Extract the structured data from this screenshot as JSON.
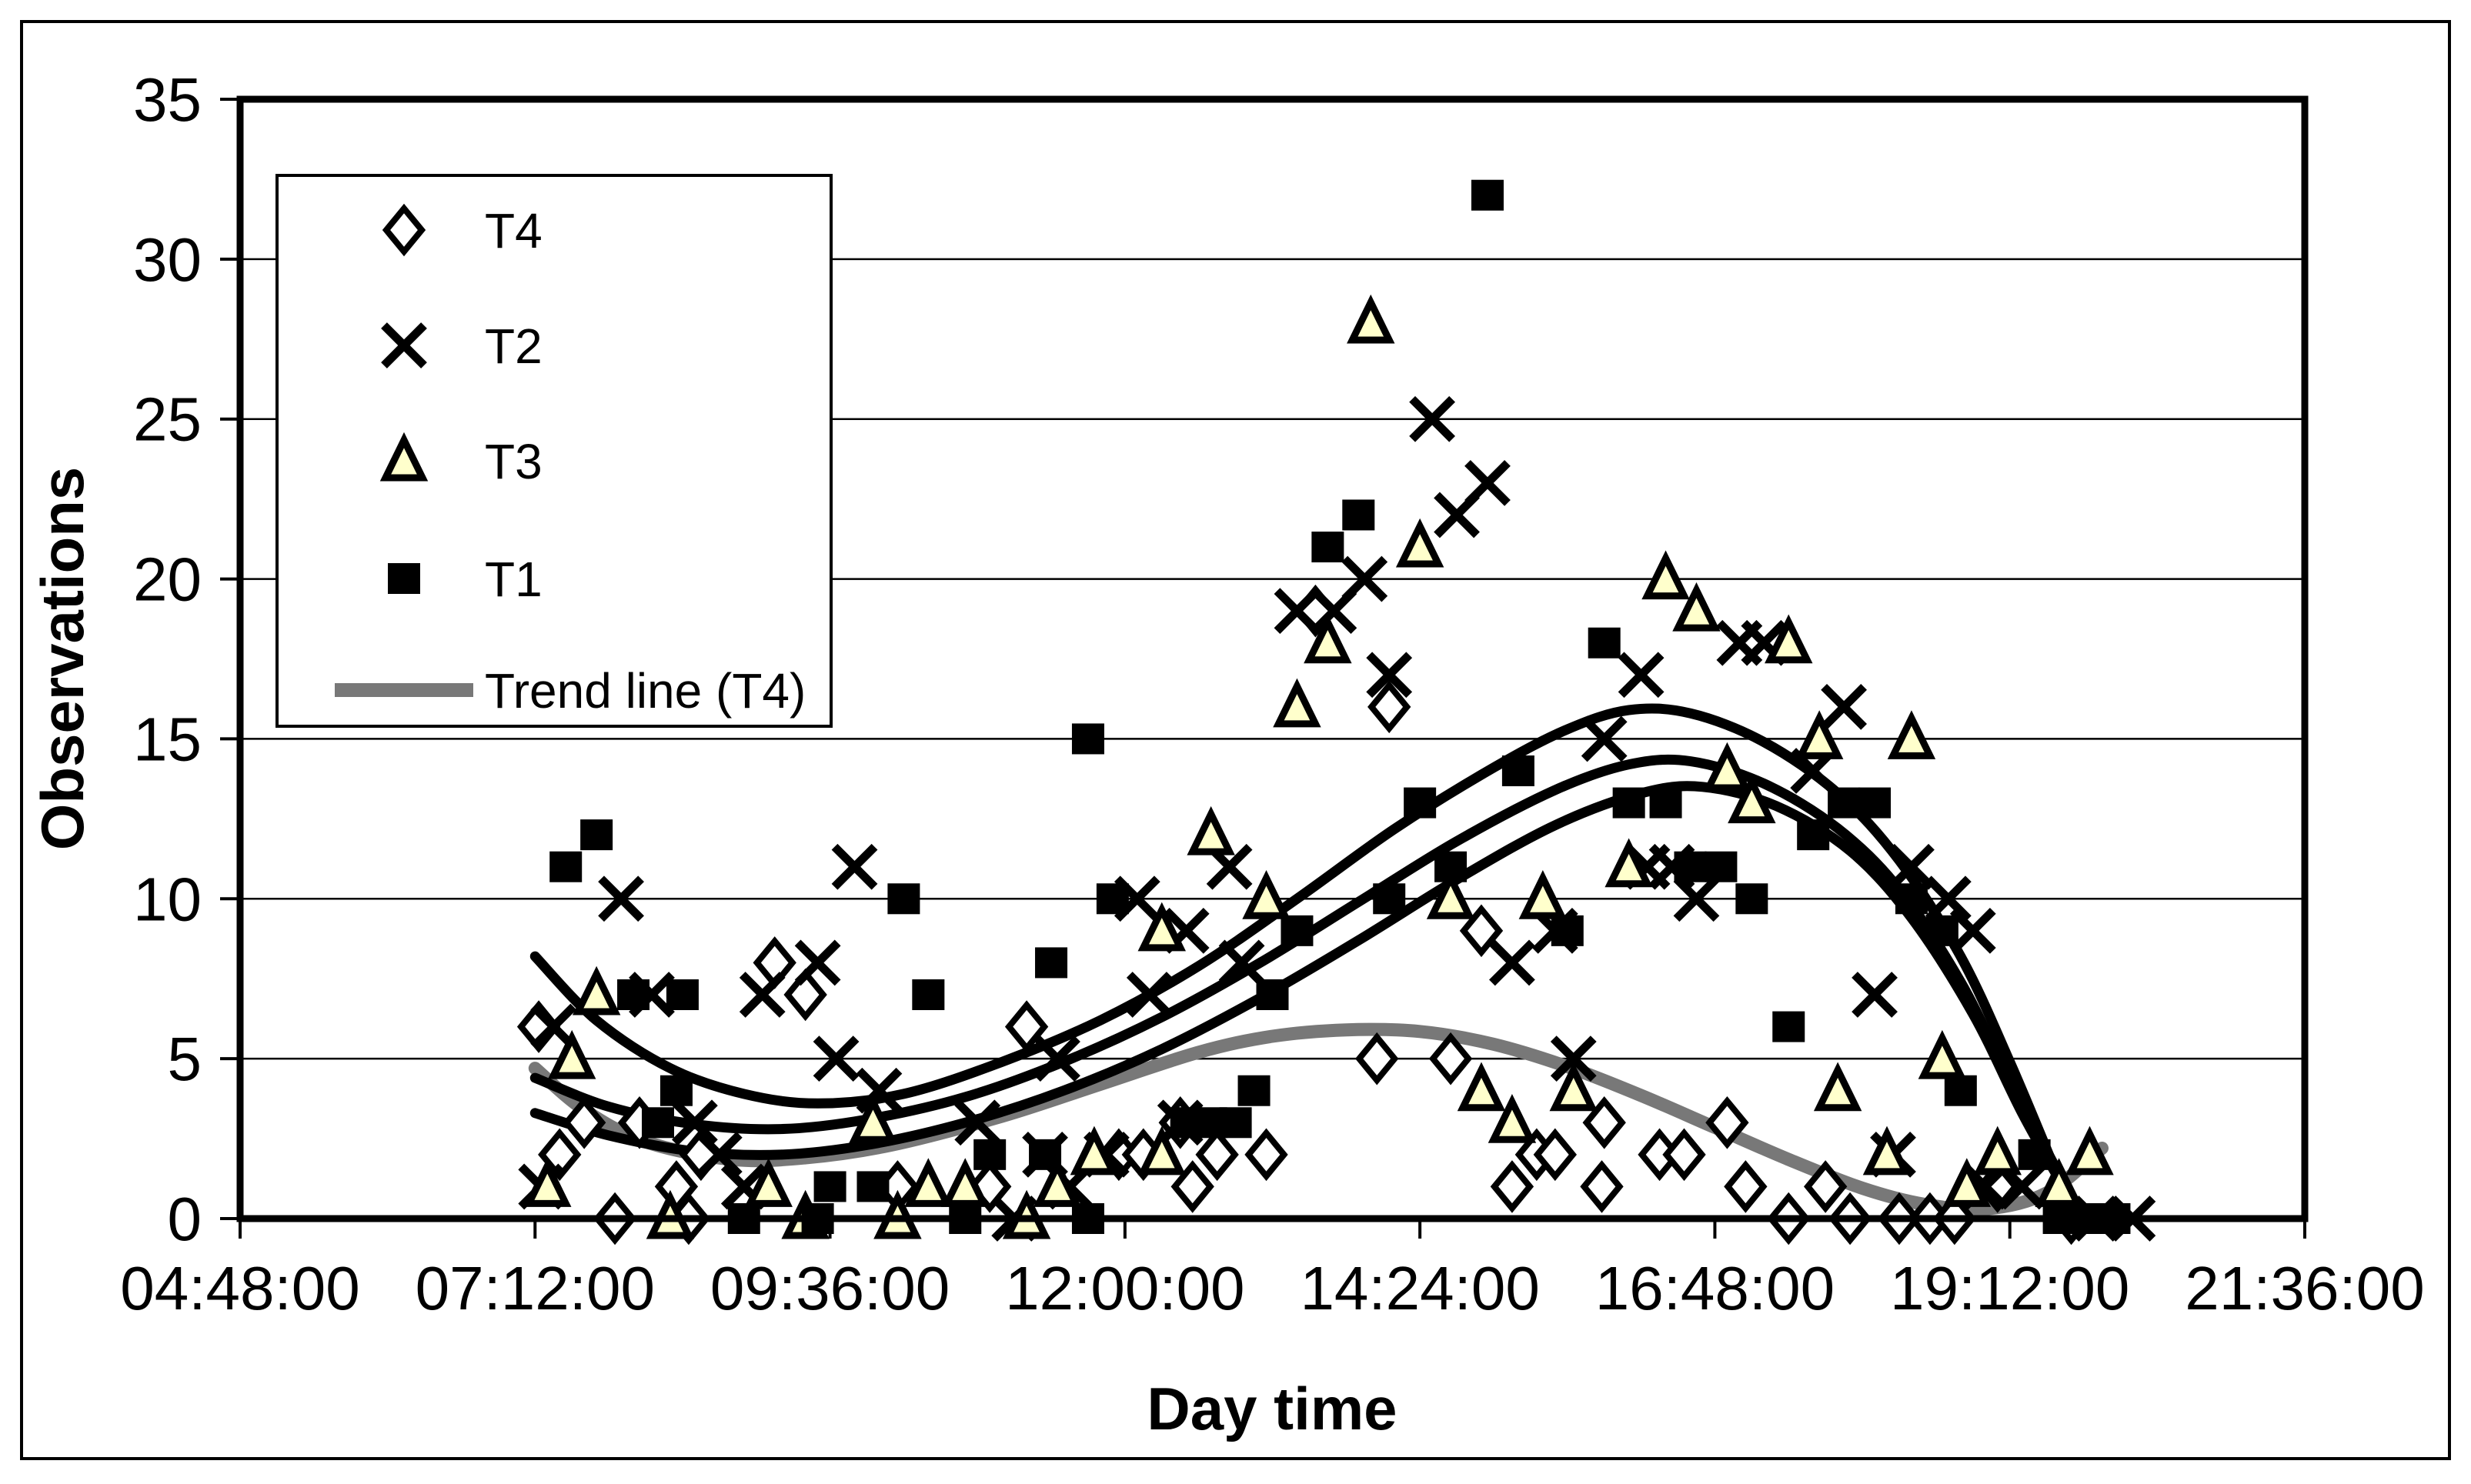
{
  "chart_data": {
    "type": "scatter",
    "title": "",
    "xlabel": "Day time",
    "ylabel": "Observations",
    "x_axis": {
      "tick_labels": [
        "04:48:00",
        "07:12:00",
        "09:36:00",
        "12:00:00",
        "14:24:00",
        "16:48:00",
        "19:12:00",
        "21:36:00"
      ],
      "tick_hours": [
        4.8,
        7.2,
        9.6,
        12.0,
        14.4,
        16.8,
        19.2,
        21.6
      ],
      "min_hours": 4.8,
      "max_hours": 21.6
    },
    "y_axis": {
      "tick_labels": [
        "0",
        "5",
        "10",
        "15",
        "20",
        "25",
        "30",
        "35"
      ],
      "tick_values": [
        0,
        5,
        10,
        15,
        20,
        25,
        30,
        35
      ],
      "min": 0,
      "max": 35,
      "gridlines": true
    },
    "legend": {
      "position": "top-left-inside",
      "entries": [
        {
          "label": "T4",
          "marker": "diamond"
        },
        {
          "label": "T2",
          "marker": "x"
        },
        {
          "label": "T3",
          "marker": "triangle"
        },
        {
          "label": "T1",
          "marker": "square"
        },
        {
          "label": "Trend line (T4)",
          "marker": "line"
        }
      ]
    },
    "colors": {
      "marker_stroke": "#000000",
      "triangle_fill": "#FFFFCC",
      "trend_gray": "#787878",
      "trend_black": "#000000",
      "background": "#FFFFFF"
    },
    "series": [
      {
        "name": "T4",
        "marker": "diamond",
        "points_hours_value": [
          [
            7.23,
            6
          ],
          [
            7.4,
            2
          ],
          [
            7.6,
            3
          ],
          [
            7.85,
            0
          ],
          [
            8.05,
            3
          ],
          [
            8.35,
            1
          ],
          [
            8.45,
            0
          ],
          [
            8.55,
            2
          ],
          [
            9.15,
            8
          ],
          [
            9.4,
            7
          ],
          [
            10.15,
            1
          ],
          [
            10.9,
            1
          ],
          [
            11.2,
            6
          ],
          [
            11.95,
            2
          ],
          [
            12.15,
            2
          ],
          [
            12.45,
            3
          ],
          [
            12.55,
            1
          ],
          [
            12.75,
            2
          ],
          [
            13.15,
            2
          ],
          [
            13.55,
            19
          ],
          [
            14.05,
            5
          ],
          [
            14.15,
            16
          ],
          [
            14.65,
            5
          ],
          [
            14.9,
            9
          ],
          [
            15.15,
            1
          ],
          [
            15.35,
            2
          ],
          [
            15.5,
            2
          ],
          [
            15.88,
            1
          ],
          [
            15.9,
            3
          ],
          [
            16.35,
            2
          ],
          [
            16.55,
            2
          ],
          [
            16.9,
            3
          ],
          [
            17.05,
            1
          ],
          [
            17.4,
            0
          ],
          [
            17.7,
            1
          ],
          [
            17.9,
            0
          ],
          [
            18.3,
            0
          ],
          [
            18.55,
            0
          ],
          [
            18.75,
            0
          ],
          [
            19.1,
            1
          ],
          [
            19.7,
            0
          ]
        ]
      },
      {
        "name": "T2",
        "marker": "x",
        "points_hours_value": [
          [
            7.25,
            1
          ],
          [
            7.35,
            6
          ],
          [
            7.9,
            10
          ],
          [
            8.15,
            7
          ],
          [
            8.5,
            3
          ],
          [
            8.7,
            2
          ],
          [
            8.9,
            1
          ],
          [
            9.05,
            7
          ],
          [
            9.5,
            8
          ],
          [
            9.65,
            5
          ],
          [
            9.8,
            11
          ],
          [
            10.0,
            4
          ],
          [
            10.8,
            3
          ],
          [
            11.1,
            0
          ],
          [
            11.35,
            2
          ],
          [
            11.45,
            5
          ],
          [
            11.55,
            1
          ],
          [
            11.85,
            2
          ],
          [
            12.1,
            10
          ],
          [
            12.2,
            7
          ],
          [
            12.45,
            3
          ],
          [
            12.5,
            9
          ],
          [
            12.85,
            11
          ],
          [
            12.95,
            8
          ],
          [
            13.4,
            19
          ],
          [
            13.7,
            19
          ],
          [
            13.95,
            20
          ],
          [
            14.15,
            17
          ],
          [
            14.5,
            25
          ],
          [
            14.7,
            22
          ],
          [
            14.95,
            23
          ],
          [
            15.15,
            8
          ],
          [
            15.5,
            9
          ],
          [
            15.65,
            5
          ],
          [
            15.9,
            15
          ],
          [
            16.2,
            17
          ],
          [
            16.25,
            11
          ],
          [
            16.45,
            11
          ],
          [
            16.65,
            10
          ],
          [
            17.0,
            18
          ],
          [
            17.2,
            18
          ],
          [
            17.6,
            14
          ],
          [
            17.85,
            16
          ],
          [
            18.1,
            7
          ],
          [
            18.25,
            2
          ],
          [
            18.4,
            11
          ],
          [
            18.7,
            10
          ],
          [
            18.9,
            9
          ],
          [
            19.0,
            1
          ],
          [
            19.3,
            1
          ],
          [
            19.9,
            0
          ],
          [
            20.2,
            0
          ]
        ]
      },
      {
        "name": "T3",
        "marker": "triangle",
        "points_hours_value": [
          [
            7.3,
            1
          ],
          [
            7.5,
            5
          ],
          [
            7.7,
            7
          ],
          [
            8.3,
            0
          ],
          [
            9.1,
            1
          ],
          [
            9.4,
            0
          ],
          [
            9.95,
            3
          ],
          [
            10.15,
            0
          ],
          [
            10.4,
            1
          ],
          [
            10.7,
            1
          ],
          [
            11.2,
            0
          ],
          [
            11.45,
            1
          ],
          [
            11.75,
            2
          ],
          [
            12.3,
            2
          ],
          [
            12.3,
            9
          ],
          [
            12.7,
            12
          ],
          [
            13.15,
            10
          ],
          [
            13.4,
            16
          ],
          [
            13.65,
            18
          ],
          [
            14.0,
            28
          ],
          [
            14.4,
            21
          ],
          [
            14.65,
            10
          ],
          [
            14.9,
            4
          ],
          [
            15.15,
            3
          ],
          [
            15.4,
            10
          ],
          [
            15.65,
            4
          ],
          [
            16.1,
            11
          ],
          [
            16.4,
            20
          ],
          [
            16.65,
            19
          ],
          [
            16.9,
            14
          ],
          [
            17.1,
            13
          ],
          [
            17.4,
            18
          ],
          [
            17.65,
            15
          ],
          [
            17.8,
            4
          ],
          [
            18.2,
            2
          ],
          [
            18.4,
            15
          ],
          [
            18.65,
            5
          ],
          [
            18.85,
            1
          ],
          [
            19.1,
            2
          ],
          [
            19.6,
            1
          ],
          [
            19.85,
            2
          ]
        ]
      },
      {
        "name": "T1",
        "marker": "square",
        "points_hours_value": [
          [
            7.45,
            11
          ],
          [
            7.7,
            12
          ],
          [
            8.0,
            7
          ],
          [
            8.2,
            3
          ],
          [
            8.35,
            4
          ],
          [
            8.4,
            7
          ],
          [
            8.9,
            0
          ],
          [
            9.5,
            0
          ],
          [
            9.6,
            1
          ],
          [
            9.95,
            1
          ],
          [
            10.2,
            10
          ],
          [
            10.4,
            7
          ],
          [
            10.7,
            0
          ],
          [
            10.9,
            2
          ],
          [
            11.35,
            2
          ],
          [
            11.4,
            8
          ],
          [
            11.7,
            0
          ],
          [
            11.7,
            15
          ],
          [
            11.9,
            10
          ],
          [
            12.5,
            3
          ],
          [
            12.7,
            3
          ],
          [
            12.9,
            3
          ],
          [
            13.05,
            4
          ],
          [
            13.2,
            7
          ],
          [
            13.4,
            9
          ],
          [
            13.65,
            21
          ],
          [
            13.9,
            22
          ],
          [
            14.15,
            10
          ],
          [
            14.4,
            13
          ],
          [
            14.65,
            11
          ],
          [
            14.95,
            32
          ],
          [
            15.2,
            14
          ],
          [
            15.6,
            9
          ],
          [
            15.9,
            18
          ],
          [
            16.1,
            13
          ],
          [
            16.4,
            13
          ],
          [
            16.6,
            11
          ],
          [
            16.85,
            11
          ],
          [
            17.1,
            10
          ],
          [
            17.4,
            6
          ],
          [
            17.6,
            12
          ],
          [
            17.85,
            13
          ],
          [
            18.1,
            13
          ],
          [
            18.4,
            10
          ],
          [
            18.65,
            9
          ],
          [
            18.8,
            4
          ],
          [
            19.4,
            2
          ],
          [
            19.6,
            0
          ],
          [
            19.8,
            0
          ],
          [
            20.05,
            0
          ]
        ]
      }
    ],
    "trend_lines": [
      {
        "name": "Trend line (T4)",
        "style": "gray-thick",
        "points_hours_value": [
          [
            7.2,
            4.7
          ],
          [
            7.6,
            3.4
          ],
          [
            8.1,
            2.4
          ],
          [
            8.8,
            1.85
          ],
          [
            9.4,
            1.9
          ],
          [
            10.1,
            2.3
          ],
          [
            11.0,
            3.2
          ],
          [
            11.8,
            4.2
          ],
          [
            12.6,
            5.2
          ],
          [
            13.2,
            5.7
          ],
          [
            13.8,
            5.9
          ],
          [
            14.4,
            5.85
          ],
          [
            15.0,
            5.45
          ],
          [
            15.6,
            4.75
          ],
          [
            16.2,
            3.85
          ],
          [
            16.8,
            2.85
          ],
          [
            17.4,
            1.85
          ],
          [
            18.0,
            0.95
          ],
          [
            18.5,
            0.45
          ],
          [
            19.0,
            0.3
          ],
          [
            19.5,
            0.8
          ],
          [
            19.95,
            2.2
          ]
        ]
      },
      {
        "name": "unlabeled trend upper",
        "style": "black",
        "points_hours_value": [
          [
            7.2,
            8.2
          ],
          [
            7.7,
            6.2
          ],
          [
            8.3,
            4.7
          ],
          [
            8.9,
            3.9
          ],
          [
            9.5,
            3.6
          ],
          [
            10.2,
            3.9
          ],
          [
            11.0,
            4.9
          ],
          [
            11.8,
            6.2
          ],
          [
            12.6,
            7.9
          ],
          [
            13.4,
            10.0
          ],
          [
            14.2,
            12.2
          ],
          [
            15.0,
            14.1
          ],
          [
            15.6,
            15.3
          ],
          [
            16.1,
            15.9
          ],
          [
            16.6,
            15.8
          ],
          [
            17.2,
            14.9
          ],
          [
            17.8,
            13.3
          ],
          [
            18.3,
            11.2
          ],
          [
            18.8,
            8.2
          ],
          [
            19.2,
            4.9
          ],
          [
            19.55,
            1.7
          ]
        ]
      },
      {
        "name": "unlabeled trend middle",
        "style": "black",
        "points_hours_value": [
          [
            7.2,
            4.4
          ],
          [
            7.8,
            3.5
          ],
          [
            8.5,
            2.95
          ],
          [
            9.2,
            2.8
          ],
          [
            9.9,
            3.1
          ],
          [
            10.7,
            3.8
          ],
          [
            11.5,
            4.9
          ],
          [
            12.3,
            6.3
          ],
          [
            13.1,
            8.0
          ],
          [
            13.9,
            9.9
          ],
          [
            14.7,
            11.8
          ],
          [
            15.5,
            13.4
          ],
          [
            16.1,
            14.2
          ],
          [
            16.6,
            14.3
          ],
          [
            17.2,
            13.6
          ],
          [
            17.8,
            12.2
          ],
          [
            18.3,
            10.3
          ],
          [
            18.8,
            7.4
          ],
          [
            19.2,
            4.3
          ],
          [
            19.6,
            1.4
          ]
        ]
      },
      {
        "name": "unlabeled trend lower",
        "style": "black",
        "points_hours_value": [
          [
            7.2,
            3.3
          ],
          [
            7.8,
            2.6
          ],
          [
            8.5,
            2.1
          ],
          [
            9.2,
            2.0
          ],
          [
            9.9,
            2.3
          ],
          [
            10.7,
            3.0
          ],
          [
            11.5,
            4.0
          ],
          [
            12.3,
            5.3
          ],
          [
            13.1,
            6.9
          ],
          [
            13.9,
            8.7
          ],
          [
            14.7,
            10.6
          ],
          [
            15.5,
            12.3
          ],
          [
            16.2,
            13.3
          ],
          [
            16.7,
            13.5
          ],
          [
            17.3,
            12.9
          ],
          [
            17.9,
            11.5
          ],
          [
            18.4,
            9.4
          ],
          [
            18.9,
            6.4
          ],
          [
            19.3,
            3.3
          ],
          [
            19.65,
            0.9
          ]
        ]
      }
    ]
  }
}
